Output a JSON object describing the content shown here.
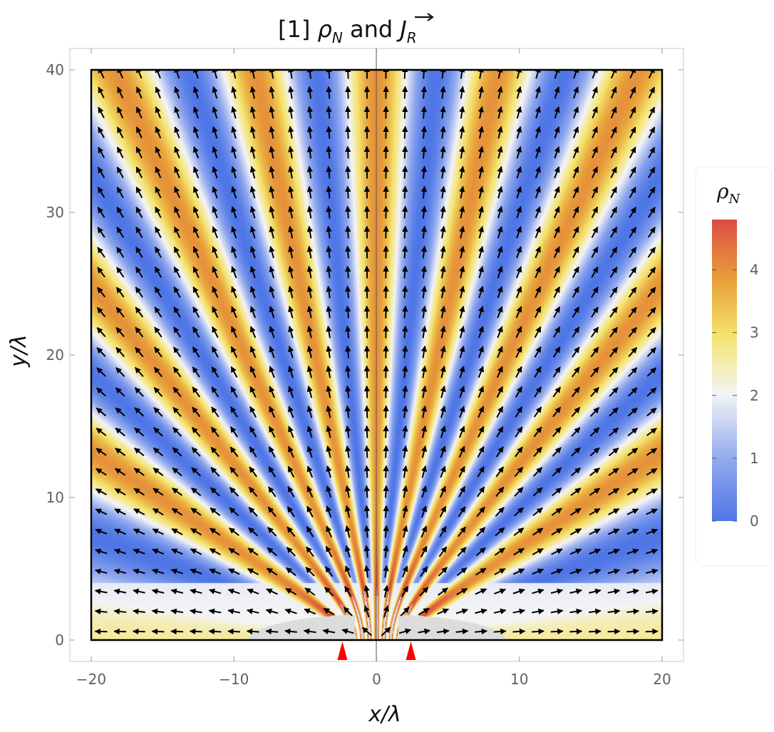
{
  "colors": {
    "low": "#4f76e6",
    "mid": "#f4f4f6",
    "yellow": "#f4e36a",
    "orange": "#e8a03a",
    "high": "#dc4b45",
    "saturated": "#dcdcdc",
    "arrow": "#000000",
    "source_marker": "#ff0000",
    "frame": "#000000"
  },
  "chart_data": {
    "type": "heatmap",
    "title": "[1] ρ_N and J_R",
    "title_parts": {
      "prefix": "[1] ",
      "rho": "ρ",
      "rho_sub": "N",
      "middle": " and ",
      "vec": "J",
      "vec_sub": "R"
    },
    "xlabel": "x/λ",
    "ylabel": "y/λ",
    "xlim": [
      -21.5,
      21.5
    ],
    "ylim": [
      -1.5,
      41.5
    ],
    "frame": {
      "x": [
        -20,
        20
      ],
      "y": [
        0,
        40
      ]
    },
    "x_ticks": [
      -20,
      -10,
      0,
      10,
      20
    ],
    "x_tick_labels": [
      "−20",
      "−10",
      "0",
      "10",
      "20"
    ],
    "y_ticks": [
      0,
      10,
      20,
      30,
      40
    ],
    "y_tick_labels": [
      "0",
      "10",
      "20",
      "30",
      "40"
    ],
    "sources": [
      {
        "x": -2.4,
        "y": 0
      },
      {
        "x": 2.4,
        "y": 0
      }
    ],
    "legend": {
      "title": "ρ",
      "title_sub": "N",
      "range": [
        0,
        4.8
      ],
      "ticks": [
        0,
        1,
        2,
        3,
        4
      ],
      "tick_labels": [
        "0",
        "1",
        "2",
        "3",
        "4"
      ]
    },
    "arrow_grid": {
      "x_step": 1.33,
      "y_step": 1.4,
      "x_start": -19.3,
      "y_start": 0.6
    }
  }
}
